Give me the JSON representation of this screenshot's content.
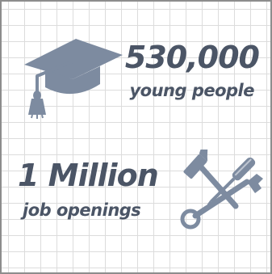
{
  "stats": [
    {
      "value": "530,000",
      "label": "young people",
      "icon": "graduation-cap-icon"
    },
    {
      "value": "1 Million",
      "label": "job openings",
      "icon": "hammer-wrench-icon"
    }
  ],
  "colors": {
    "text": "#4b5566",
    "icon": "#7d8ba0",
    "grid": "#dcdcdc",
    "border": "#8d8d8d"
  }
}
